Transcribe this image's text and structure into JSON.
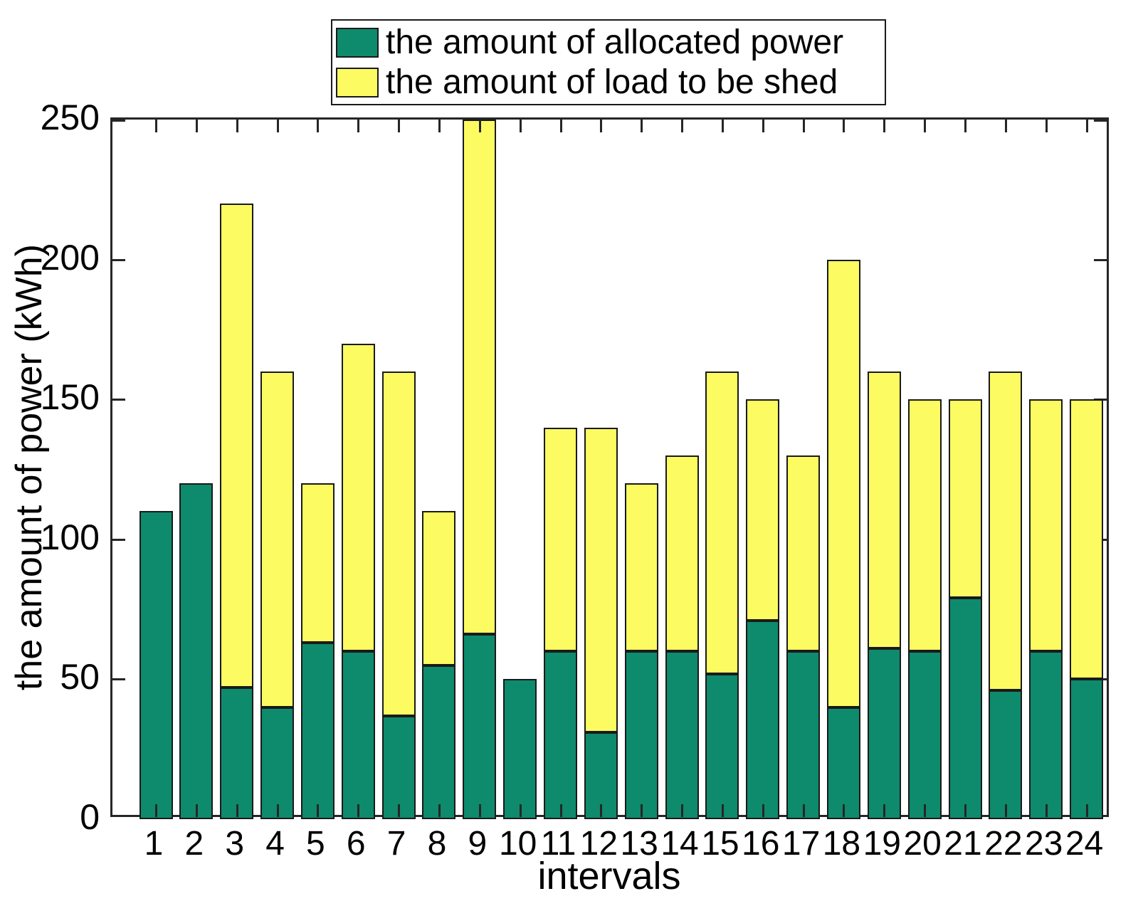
{
  "chart_data": {
    "type": "bar",
    "stacked": true,
    "title": "",
    "xlabel": "intervals",
    "ylabel": "the amount of power (kWh)",
    "categories": [
      "1",
      "2",
      "3",
      "4",
      "5",
      "6",
      "7",
      "8",
      "9",
      "10",
      "11",
      "12",
      "13",
      "14",
      "15",
      "16",
      "17",
      "18",
      "19",
      "20",
      "21",
      "22",
      "23",
      "24"
    ],
    "series": [
      {
        "name": "the amount of allocated power",
        "color": "#0e8a6d",
        "values": [
          110,
          120,
          47,
          40,
          63,
          60,
          37,
          55,
          66,
          50,
          60,
          31,
          60,
          60,
          52,
          71,
          60,
          40,
          61,
          60,
          79,
          46,
          60,
          50
        ]
      },
      {
        "name": "the amount of load to be shed",
        "color": "#fcfc62",
        "values": [
          0,
          0,
          173,
          120,
          57,
          110,
          123,
          55,
          184,
          0,
          80,
          109,
          60,
          70,
          108,
          79,
          70,
          160,
          99,
          90,
          71,
          114,
          90,
          100
        ]
      }
    ],
    "ylim": [
      0,
      250
    ],
    "yticks": [
      0,
      50,
      100,
      150,
      200,
      250
    ],
    "legend_position": "top-center",
    "grid": false,
    "axis_color": "#262626",
    "bar_border_color": "#1a1a1a",
    "notes": "bar 9 stack reaches the 250 kWh axis limit (clipped at top)"
  }
}
